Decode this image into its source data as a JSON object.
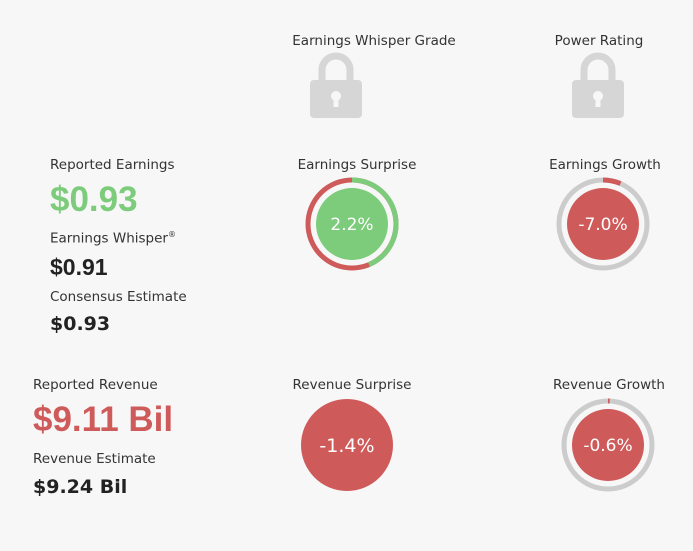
{
  "grades": {
    "ew_grade_label": "Earnings Whisper Grade",
    "power_rating_label": "Power Rating",
    "lock_icon": "lock-icon"
  },
  "earnings": {
    "reported_label": "Reported Earnings",
    "reported_value": "$0.93",
    "whisper_label": "Earnings Whisper",
    "whisper_mark": "®",
    "whisper_value": "$0.91",
    "consensus_label": "Consensus Estimate",
    "consensus_value": "$0.93",
    "surprise_label": "Earnings Surprise",
    "surprise_value": "2.2%",
    "growth_label": "Earnings Growth",
    "growth_value": "-7.0%"
  },
  "revenue": {
    "reported_label": "Reported Revenue",
    "reported_value": "$9.11 Bil",
    "estimate_label": "Revenue Estimate",
    "estimate_value": "$9.24 Bil",
    "surprise_label": "Revenue Surprise",
    "surprise_value": "-1.4%",
    "growth_label": "Revenue Growth",
    "growth_value": "-0.6%"
  },
  "colors": {
    "positive": "#7ccc7c",
    "negative": "#cf5a5a",
    "track": "#cccccc",
    "lock": "#d6d6d6"
  }
}
